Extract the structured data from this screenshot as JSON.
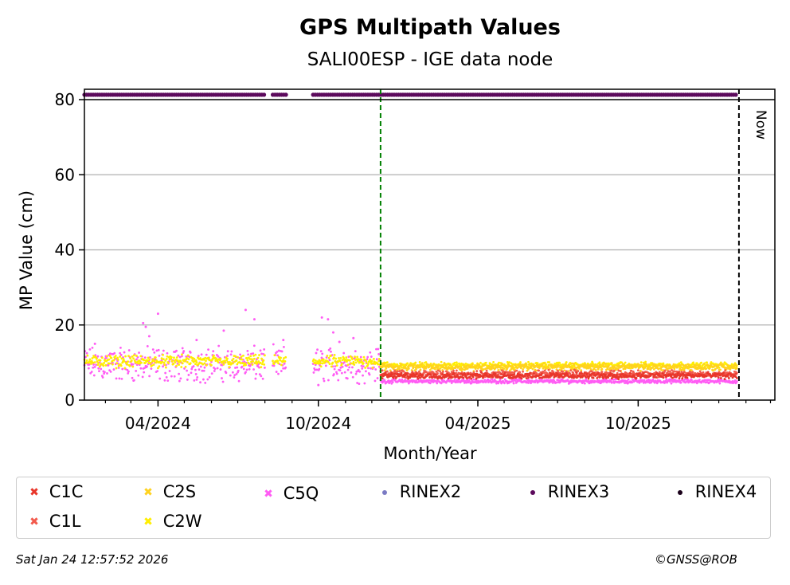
{
  "chart_data": {
    "type": "scatter",
    "title": "GPS Multipath Values",
    "subtitle": "SALI00ESP - IGE data node",
    "xlabel": "Month/Year",
    "ylabel": "MP Value (cm)",
    "ylim": [
      0,
      80
    ],
    "xlim": [
      "2024-01-08",
      "2026-03-06"
    ],
    "yticks": [
      0,
      20,
      40,
      60,
      80
    ],
    "xticks": [
      "04/2024",
      "10/2024",
      "04/2025",
      "10/2025"
    ],
    "xtick_dates": [
      "2024-04-01",
      "2024-10-01",
      "2025-04-01",
      "2025-10-01"
    ],
    "grid": true,
    "legend_placement": "bottom",
    "vlines": [
      {
        "date": "2024-12-11",
        "color": "#008000"
      },
      {
        "date": "2026-01-24",
        "color": "#000000",
        "label": "Now"
      }
    ],
    "series": [
      {
        "name": "C1C",
        "color": "#e8362b",
        "marker": "x",
        "segments": [
          {
            "start": "2024-12-11",
            "end": "2026-01-22",
            "mean": 6.5,
            "spread": 0.6
          }
        ]
      },
      {
        "name": "C1L",
        "color": "#f25a4d",
        "marker": "x",
        "segments": [
          {
            "start": "2024-12-11",
            "end": "2026-01-22",
            "mean": 7.0,
            "spread": 0.7
          }
        ]
      },
      {
        "name": "C2S",
        "color": "#ffd21f",
        "marker": "x",
        "segments": [
          {
            "start": "2024-12-11",
            "end": "2026-01-22",
            "mean": 8.8,
            "spread": 0.7
          }
        ]
      },
      {
        "name": "C5Q",
        "color": "#ff5cf4",
        "marker": "x",
        "segments": [
          {
            "start": "2024-01-08",
            "end": "2024-08-01",
            "mean": 9.5,
            "spread": 3.5
          },
          {
            "start": "2024-08-10",
            "end": "2024-08-25",
            "mean": 9.5,
            "spread": 3.5
          },
          {
            "start": "2024-09-25",
            "end": "2024-12-11",
            "mean": 9.5,
            "spread": 3.5
          },
          {
            "start": "2024-12-11",
            "end": "2026-01-22",
            "mean": 5.0,
            "spread": 0.4
          }
        ],
        "outliers": [
          [
            "2024-03-15",
            20.5
          ],
          [
            "2024-03-18",
            19.5
          ],
          [
            "2024-03-22",
            17.0
          ],
          [
            "2024-04-01",
            23.0
          ],
          [
            "2024-05-15",
            16.0
          ],
          [
            "2024-06-15",
            18.5
          ],
          [
            "2024-07-10",
            24.0
          ],
          [
            "2024-07-20",
            21.5
          ],
          [
            "2024-08-22",
            16.0
          ],
          [
            "2024-10-05",
            22.0
          ],
          [
            "2024-10-12",
            21.5
          ],
          [
            "2024-10-18",
            18.0
          ],
          [
            "2024-10-25",
            15.5
          ],
          [
            "2024-11-10",
            16.5
          ],
          [
            "2024-01-20",
            15.0
          ],
          [
            "2024-10-01",
            4.0
          ]
        ]
      },
      {
        "name": "C2W",
        "color": "#ffee00",
        "marker": "x",
        "segments": [
          {
            "start": "2024-01-08",
            "end": "2024-08-01",
            "mean": 10.3,
            "spread": 1.2
          },
          {
            "start": "2024-08-10",
            "end": "2024-08-25",
            "mean": 10.3,
            "spread": 1.2
          },
          {
            "start": "2024-09-25",
            "end": "2024-12-11",
            "mean": 10.3,
            "spread": 1.2
          },
          {
            "start": "2024-12-11",
            "end": "2026-01-22",
            "mean": 9.3,
            "spread": 0.6
          }
        ]
      },
      {
        "name": "RINEX2",
        "color": "#7b7bc4",
        "marker": "o",
        "segments": []
      },
      {
        "name": "RINEX3",
        "color": "#5c0a5c",
        "marker": "o",
        "segments": [
          {
            "start": "2024-01-08",
            "end": "2024-08-01",
            "mean": 81.3,
            "spread": 0
          },
          {
            "start": "2024-08-10",
            "end": "2024-08-25",
            "mean": 81.3,
            "spread": 0
          },
          {
            "start": "2024-09-25",
            "end": "2026-01-22",
            "mean": 81.3,
            "spread": 0
          }
        ]
      },
      {
        "name": "RINEX4",
        "color": "#1a001a",
        "marker": "o",
        "segments": []
      }
    ]
  },
  "now_label": "Now",
  "legend": [
    {
      "label": "C1C",
      "color": "#e8362b",
      "marker": "x"
    },
    {
      "label": "C1L",
      "color": "#f25a4d",
      "marker": "x"
    },
    {
      "label": "C2S",
      "color": "#ffd21f",
      "marker": "x"
    },
    {
      "label": "C2W",
      "color": "#ffee00",
      "marker": "x"
    },
    {
      "label": "C5Q",
      "color": "#ff5cf4",
      "marker": "x"
    },
    {
      "label": "RINEX2",
      "color": "#7b7bc4",
      "marker": "o"
    },
    {
      "label": "RINEX3",
      "color": "#5c0a5c",
      "marker": "o"
    },
    {
      "label": "RINEX4",
      "color": "#1a001a",
      "marker": "o"
    }
  ],
  "footer": {
    "timestamp": "Sat Jan 24 12:57:52 2026",
    "copyright": "©GNSS@ROB"
  }
}
